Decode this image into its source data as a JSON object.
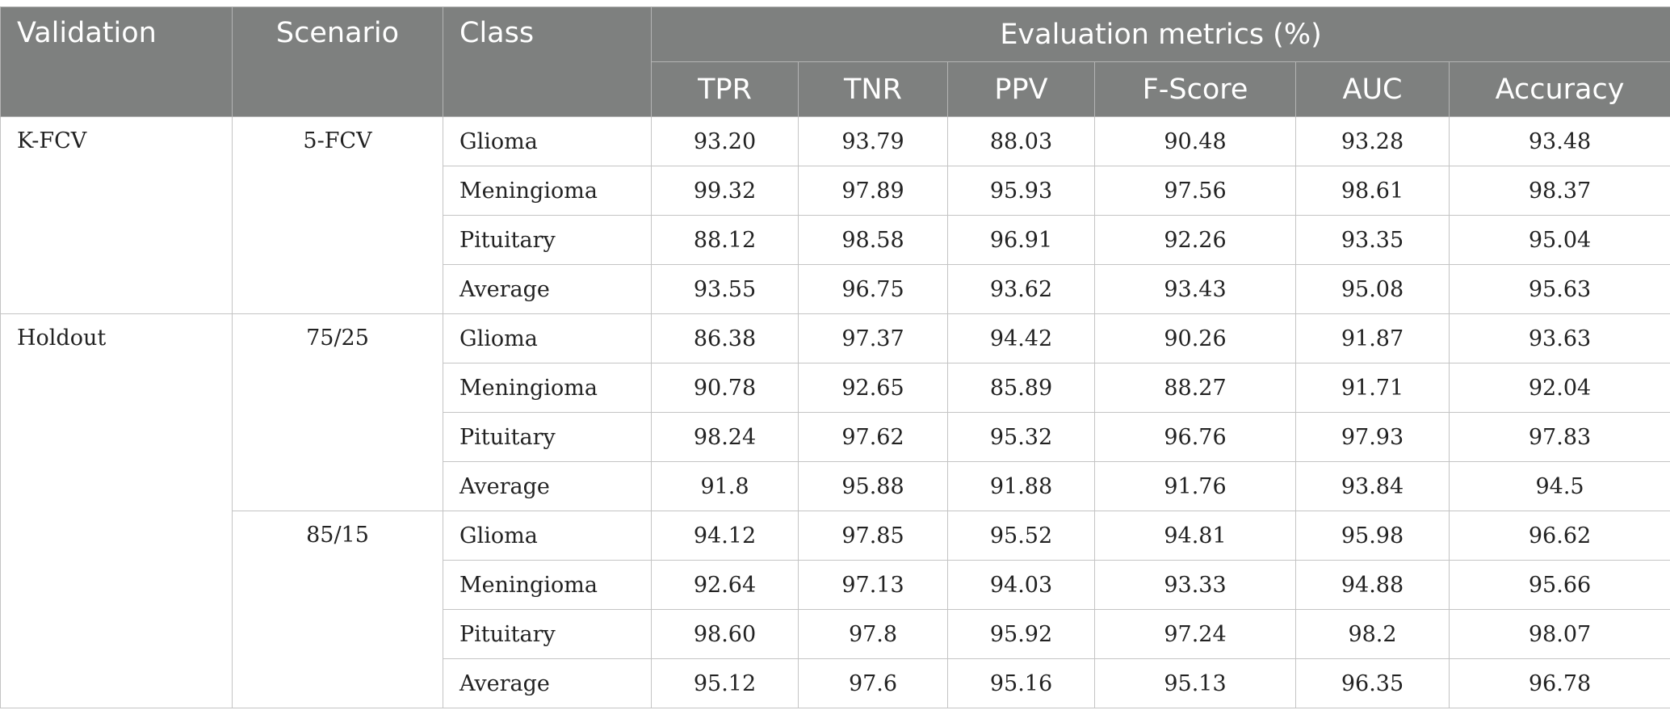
{
  "header": {
    "validation": "Validation",
    "scenario": "Scenario",
    "class": "Class",
    "metrics_group": "Evaluation metrics (%)",
    "metrics": [
      "TPR",
      "TNR",
      "PPV",
      "F-Score",
      "AUC",
      "Accuracy"
    ]
  },
  "groups": [
    {
      "validation": "K-FCV",
      "scenarios": [
        {
          "scenario": "5-FCV",
          "rows": [
            {
              "class": "Glioma",
              "values": [
                "93.20",
                "93.79",
                "88.03",
                "90.48",
                "93.28",
                "93.48"
              ]
            },
            {
              "class": "Meningioma",
              "values": [
                "99.32",
                "97.89",
                "95.93",
                "97.56",
                "98.61",
                "98.37"
              ]
            },
            {
              "class": "Pituitary",
              "values": [
                "88.12",
                "98.58",
                "96.91",
                "92.26",
                "93.35",
                "95.04"
              ]
            },
            {
              "class": "Average",
              "values": [
                "93.55",
                "96.75",
                "93.62",
                "93.43",
                "95.08",
                "95.63"
              ]
            }
          ]
        }
      ]
    },
    {
      "validation": "Holdout",
      "scenarios": [
        {
          "scenario": "75/25",
          "rows": [
            {
              "class": "Glioma",
              "values": [
                "86.38",
                "97.37",
                "94.42",
                "90.26",
                "91.87",
                "93.63"
              ]
            },
            {
              "class": "Meningioma",
              "values": [
                "90.78",
                "92.65",
                "85.89",
                "88.27",
                "91.71",
                "92.04"
              ]
            },
            {
              "class": "Pituitary",
              "values": [
                "98.24",
                "97.62",
                "95.32",
                "96.76",
                "97.93",
                "97.83"
              ]
            },
            {
              "class": "Average",
              "values": [
                "91.8",
                "95.88",
                "91.88",
                "91.76",
                "93.84",
                "94.5"
              ]
            }
          ]
        },
        {
          "scenario": "85/15",
          "rows": [
            {
              "class": "Glioma",
              "values": [
                "94.12",
                "97.85",
                "95.52",
                "94.81",
                "95.98",
                "96.62"
              ]
            },
            {
              "class": "Meningioma",
              "values": [
                "92.64",
                "97.13",
                "94.03",
                "93.33",
                "94.88",
                "95.66"
              ]
            },
            {
              "class": "Pituitary",
              "values": [
                "98.60",
                "97.8",
                "95.92",
                "97.24",
                "98.2",
                "98.07"
              ]
            },
            {
              "class": "Average",
              "values": [
                "95.12",
                "97.6",
                "95.16",
                "95.13",
                "96.35",
                "96.78"
              ]
            }
          ]
        }
      ]
    }
  ],
  "colors": {
    "header_bg": "#7e807f",
    "header_text": "#ffffff",
    "grid": "#c4c4c4"
  }
}
